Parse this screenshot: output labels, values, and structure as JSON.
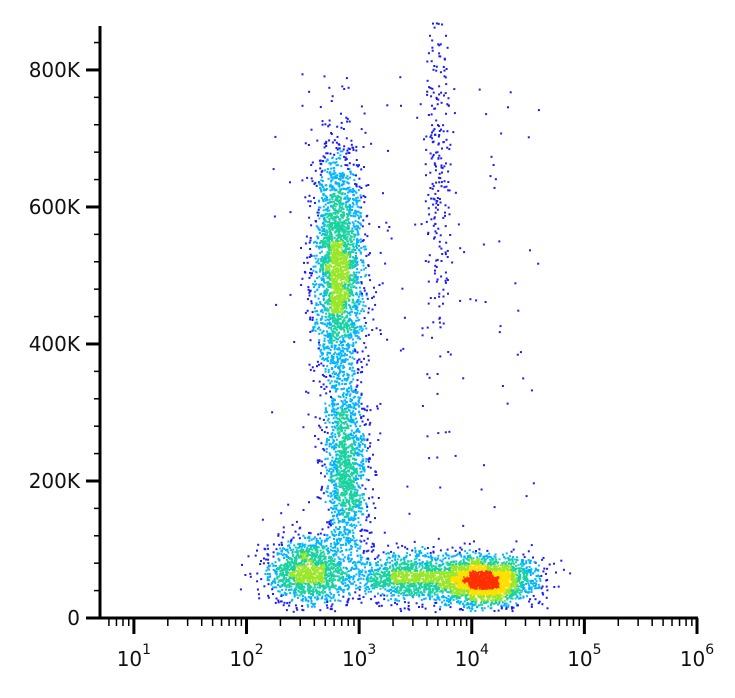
{
  "chart_data": {
    "type": "scatter",
    "subtype": "density-colored flow cytometry dot plot",
    "title": "",
    "xlabel": "",
    "ylabel": "",
    "x_scale": "log",
    "x_range": [
      5,
      1000000
    ],
    "y_range": [
      0,
      870000
    ],
    "x_ticks": [
      {
        "value": 10,
        "base": "10",
        "exp": "1"
      },
      {
        "value": 100,
        "base": "10",
        "exp": "2"
      },
      {
        "value": 1000,
        "base": "10",
        "exp": "3"
      },
      {
        "value": 10000,
        "base": "10",
        "exp": "4"
      },
      {
        "value": 100000,
        "base": "10",
        "exp": "5"
      },
      {
        "value": 1000000,
        "base": "10",
        "exp": "6"
      }
    ],
    "y_ticks": [
      {
        "value": 0,
        "label": "0"
      },
      {
        "value": 200000,
        "label": "200K"
      },
      {
        "value": 400000,
        "label": "400K"
      },
      {
        "value": 600000,
        "label": "600K"
      },
      {
        "value": 800000,
        "label": "800K"
      }
    ],
    "grid": false,
    "legend": "none",
    "colormap": [
      "#1a1aff",
      "#00b4ff",
      "#19d2a0",
      "#9ae628",
      "#ffe000",
      "#ff3000"
    ],
    "populations": [
      {
        "center_x": 650,
        "center_y": 510000,
        "spread_log_x": 0.11,
        "spread_y": 90000,
        "density": "high"
      },
      {
        "center_x": 750,
        "center_y": 220000,
        "spread_log_x": 0.1,
        "spread_y": 70000,
        "density": "medium"
      },
      {
        "center_x": 350,
        "center_y": 70000,
        "spread_log_x": 0.18,
        "spread_y": 25000,
        "density": "medium"
      },
      {
        "center_x": 13000,
        "center_y": 55000,
        "spread_log_x": 0.22,
        "spread_y": 18000,
        "density": "very high"
      },
      {
        "center_x": 3000,
        "center_y": 60000,
        "spread_log_x": 0.3,
        "spread_y": 18000,
        "density": "medium"
      },
      {
        "center_x": 5000,
        "center_y": 700000,
        "spread_log_x": 0.06,
        "spread_y": 150000,
        "density": "low"
      }
    ]
  }
}
